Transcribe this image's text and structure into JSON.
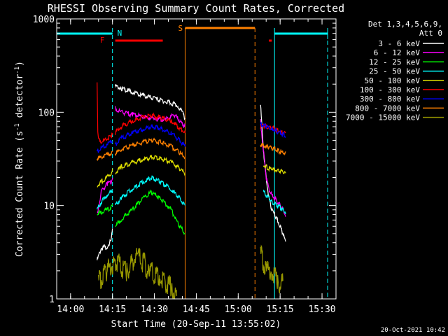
{
  "chart_data": {
    "type": "line",
    "title": "RHESSI Observing Summary Count Rates, Corrected",
    "xlabel": "Start Time (20-Sep-11 13:55:02)",
    "ylabel": "Corrected Count Rate (s",
    "ylabel_sup1": "-1",
    "ylabel_mid": " detector",
    "ylabel_sup2": "-1",
    "ylabel_end": ")",
    "yscale": "log",
    "ylim": [
      1,
      1000
    ],
    "xlim": [
      "13:55:02",
      "15:35:00"
    ],
    "x_ticks": [
      "14:00",
      "14:15",
      "14:30",
      "14:45",
      "15:00",
      "15:15",
      "15:30"
    ],
    "y_ticks": [
      "1",
      "10",
      "100",
      "1000"
    ],
    "timestamp": "20-Oct-2021 10:42",
    "legend": {
      "header_line1": "Det 1,3,4,5,6,9,",
      "header_line2": "Att 0",
      "position": "right",
      "entries": [
        {
          "label": "3 - 6 keV",
          "color": "#ffffff"
        },
        {
          "label": "6 - 12 keV",
          "color": "#ff00ff"
        },
        {
          "label": "12 - 25 keV",
          "color": "#00ff00"
        },
        {
          "label": "25 - 50 keV",
          "color": "#00ffff"
        },
        {
          "label": "50 - 100 keV",
          "color": "#e0e000"
        },
        {
          "label": "100 - 300 keV",
          "color": "#ff0000"
        },
        {
          "label": "300 - 800 keV",
          "color": "#0000ff"
        },
        {
          "label": "800 - 7000 keV",
          "color": "#ff8000"
        },
        {
          "label": "7000 - 15000 keV",
          "color": "#999900"
        }
      ]
    },
    "flags": [
      {
        "letter": "N",
        "color": "#00ffff",
        "label_time": "14:16:00"
      },
      {
        "letter": "F",
        "color": "#ff0000",
        "label_time": "14:12:00"
      },
      {
        "letter": "S",
        "color": "#ff8000",
        "label_time": "14:41:00"
      }
    ],
    "series": [
      {
        "name": "3 - 6 keV",
        "color": "#ffffff",
        "segments": [
          {
            "x": [
              "14:09:30",
              "14:11:00",
              "14:13:00",
              "14:14:30",
              "14:15:00"
            ],
            "y": [
              2.6,
              3.5,
              3.6,
              4.2,
              5.5
            ]
          },
          {
            "x": [
              "14:16:00",
              "14:18:00",
              "14:22:00",
              "14:26:00",
              "14:30:00",
              "14:34:00",
              "14:38:00",
              "14:40:00",
              "14:41:00"
            ],
            "y": [
              190,
              180,
              165,
              150,
              140,
              130,
              120,
              100,
              85
            ]
          },
          {
            "x": [
              "15:08:00",
              "15:09:00",
              "15:10:00",
              "15:11:00",
              "15:12:00",
              "15:13:00",
              "15:14:00",
              "15:15:00",
              "15:16:00",
              "15:17:00"
            ],
            "y": [
              120,
              40,
              20,
              12,
              9,
              8,
              7,
              6,
              5,
              4
            ]
          }
        ]
      },
      {
        "name": "6 - 12 keV",
        "color": "#ff00ff",
        "segments": [
          {
            "x": [
              "14:09:30",
              "14:11:00",
              "14:13:00",
              "14:14:30",
              "14:15:00"
            ],
            "y": [
              8,
              14,
              17,
              18,
              20
            ]
          },
          {
            "x": [
              "14:16:00",
              "14:18:00",
              "14:22:00",
              "14:26:00",
              "14:30:00",
              "14:34:00",
              "14:37:00",
              "14:40:00",
              "14:41:00"
            ],
            "y": [
              110,
              100,
              95,
              90,
              85,
              83,
              95,
              75,
              70
            ]
          },
          {
            "x": [
              "15:08:00",
              "15:09:00",
              "15:10:00",
              "15:11:00",
              "15:12:00",
              "15:13:00",
              "15:14:00",
              "15:15:00",
              "15:16:00",
              "15:17:00"
            ],
            "y": [
              80,
              40,
              20,
              15,
              13,
              12,
              11,
              10,
              9,
              8
            ]
          }
        ]
      },
      {
        "name": "12 - 25 keV",
        "color": "#00ff00",
        "segments": [
          {
            "x": [
              "14:09:30",
              "14:11:00",
              "14:13:00",
              "14:14:30",
              "14:15:00"
            ],
            "y": [
              8,
              8.5,
              9,
              9.5,
              10
            ]
          },
          {
            "x": [
              "14:16:00",
              "14:18:00",
              "14:22:00",
              "14:26:00",
              "14:29:00",
              "14:32:00",
              "14:36:00",
              "14:39:00",
              "14:41:00"
            ],
            "y": [
              6,
              7,
              9,
              12,
              14,
              12,
              9,
              6,
              5
            ]
          }
        ]
      },
      {
        "name": "25 - 50 keV",
        "color": "#00ffff",
        "segments": [
          {
            "x": [
              "14:09:30",
              "14:11:00",
              "14:13:00",
              "14:14:30",
              "14:15:00"
            ],
            "y": [
              9,
              11,
              13,
              14,
              15
            ]
          },
          {
            "x": [
              "14:16:00",
              "14:18:00",
              "14:22:00",
              "14:26:00",
              "14:29:00",
              "14:32:00",
              "14:36:00",
              "14:39:00",
              "14:41:00"
            ],
            "y": [
              10,
              12,
              15,
              18,
              20,
              18,
              15,
              12,
              10
            ]
          },
          {
            "x": [
              "15:09:00",
              "15:10:00",
              "15:11:00",
              "15:12:00",
              "15:13:00",
              "15:14:00",
              "15:15:00",
              "15:16:00",
              "15:17:00"
            ],
            "y": [
              14,
              13,
              12,
              11,
              10.5,
              10,
              9.5,
              9,
              8.5
            ]
          }
        ]
      },
      {
        "name": "50 - 100 keV",
        "color": "#e0e000",
        "segments": [
          {
            "x": [
              "14:09:30",
              "14:11:00",
              "14:13:00",
              "14:14:30",
              "14:15:00"
            ],
            "y": [
              16,
              18,
              20,
              22,
              24
            ]
          },
          {
            "x": [
              "14:16:00",
              "14:18:00",
              "14:22:00",
              "14:26:00",
              "14:29:00",
              "14:32:00",
              "14:36:00",
              "14:39:00",
              "14:41:00"
            ],
            "y": [
              22,
              26,
              29,
              31,
              33,
              32,
              29,
              25,
              22
            ]
          },
          {
            "x": [
              "15:09:00",
              "15:10:00",
              "15:11:00",
              "15:12:00",
              "15:13:00",
              "15:14:00",
              "15:15:00",
              "15:16:00",
              "15:17:00"
            ],
            "y": [
              27,
              26,
              25,
              25,
              24,
              24,
              23,
              23,
              22
            ]
          }
        ]
      },
      {
        "name": "100 - 300 keV",
        "color": "#ff0000",
        "segments": [
          {
            "x": [
              "14:09:30",
              "14:09:45",
              "14:10:30",
              "14:12:00",
              "14:14:30",
              "14:15:00"
            ],
            "y": [
              220,
              60,
              48,
              50,
              55,
              58
            ]
          },
          {
            "x": [
              "14:16:00",
              "14:18:00",
              "14:22:00",
              "14:26:00",
              "14:29:00",
              "14:32:00",
              "14:36:00",
              "14:39:00",
              "14:41:00"
            ],
            "y": [
              60,
              70,
              80,
              88,
              92,
              88,
              80,
              68,
              60
            ]
          },
          {
            "x": [
              "15:08:00",
              "15:09:00",
              "15:10:00",
              "15:11:00",
              "15:12:00",
              "15:13:00",
              "15:14:00",
              "15:15:00",
              "15:16:00",
              "15:17:00"
            ],
            "y": [
              70,
              72,
              70,
              69,
              68,
              66,
              64,
              62,
              60,
              58
            ]
          }
        ]
      },
      {
        "name": "300 - 800 keV",
        "color": "#0000ff",
        "segments": [
          {
            "x": [
              "14:09:30",
              "14:11:00",
              "14:13:00",
              "14:14:30",
              "14:15:00"
            ],
            "y": [
              38,
              41,
              45,
              48,
              50
            ]
          },
          {
            "x": [
              "14:16:00",
              "14:18:00",
              "14:22:00",
              "14:26:00",
              "14:29:00",
              "14:32:00",
              "14:36:00",
              "14:39:00",
              "14:41:00"
            ],
            "y": [
              45,
              52,
              60,
              66,
              70,
              67,
              60,
              50,
              43
            ]
          },
          {
            "x": [
              "15:08:00",
              "15:09:00",
              "15:10:00",
              "15:11:00",
              "15:12:00",
              "15:13:00",
              "15:14:00",
              "15:15:00",
              "15:16:00",
              "15:17:00"
            ],
            "y": [
              75,
              72,
              70,
              68,
              66,
              64,
              62,
              60,
              58,
              56
            ]
          }
        ]
      },
      {
        "name": "800 - 7000 keV",
        "color": "#ff8000",
        "segments": [
          {
            "x": [
              "14:09:30",
              "14:11:00",
              "14:13:00",
              "14:14:30",
              "14:15:00"
            ],
            "y": [
              32,
              33,
              35,
              36,
              37
            ]
          },
          {
            "x": [
              "14:16:00",
              "14:18:00",
              "14:22:00",
              "14:26:00",
              "14:29:00",
              "14:32:00",
              "14:36:00",
              "14:39:00",
              "14:41:00"
            ],
            "y": [
              36,
              40,
              44,
              48,
              50,
              48,
              43,
              37,
              33
            ]
          },
          {
            "x": [
              "15:08:00",
              "15:09:00",
              "15:10:00",
              "15:11:00",
              "15:12:00",
              "15:13:00",
              "15:14:00",
              "15:15:00",
              "15:16:00",
              "15:17:00"
            ],
            "y": [
              45,
              44,
              43,
              42,
              41,
              40,
              39,
              38,
              37,
              36
            ]
          }
        ]
      },
      {
        "name": "7000 - 15000 keV",
        "color": "#999900",
        "segments": [
          {
            "x": [
              "14:10:00",
              "14:13:00",
              "14:16:00",
              "14:20:00",
              "14:24:00",
              "14:28:00",
              "14:32:00",
              "14:36:00",
              "14:38:00"
            ],
            "y": [
              1.5,
              2,
              2.5,
              2,
              3,
              2,
              1.8,
              1.3,
              1
            ]
          },
          {
            "x": [
              "15:08:00",
              "15:10:00",
              "15:12:00",
              "15:14:00",
              "15:16:00"
            ],
            "y": [
              3,
              2,
              2,
              1.5,
              1.5
            ]
          }
        ]
      }
    ]
  }
}
